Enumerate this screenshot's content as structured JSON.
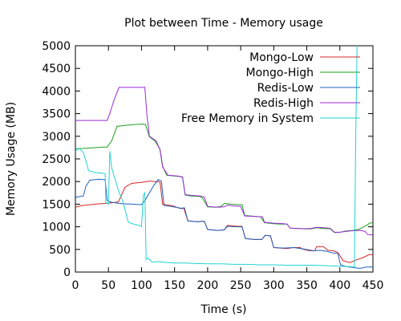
{
  "chart_data": {
    "type": "line",
    "title": "Plot between Time - Memory usage",
    "xlabel": "Time (s)",
    "ylabel": "Memory Usage (MB)",
    "xlim": [
      0,
      450
    ],
    "ylim": [
      0,
      5000
    ],
    "xticks": [
      "0",
      "50",
      "100",
      "150",
      "200",
      "250",
      "300",
      "350",
      "400",
      "450"
    ],
    "yticks": [
      "0",
      "500",
      "1000",
      "1500",
      "2000",
      "2500",
      "3000",
      "3500",
      "4000",
      "4500",
      "5000"
    ],
    "grid": false,
    "legend_position": "top-right",
    "series": [
      {
        "name": "Mongo-Low",
        "color": "#d62728",
        "points": [
          [
            0,
            1430
          ],
          [
            10,
            1470
          ],
          [
            30,
            1500
          ],
          [
            55,
            1530
          ],
          [
            65,
            1550
          ],
          [
            75,
            1870
          ],
          [
            85,
            1960
          ],
          [
            100,
            1980
          ],
          [
            112,
            2010
          ],
          [
            120,
            2000
          ],
          [
            128,
            1990
          ],
          [
            132,
            1500
          ],
          [
            145,
            1470
          ],
          [
            150,
            1450
          ],
          [
            155,
            1420
          ],
          [
            160,
            1400
          ],
          [
            164,
            1410
          ],
          [
            170,
            1130
          ],
          [
            185,
            1110
          ],
          [
            190,
            1120
          ],
          [
            195,
            1120
          ],
          [
            200,
            940
          ],
          [
            215,
            920
          ],
          [
            225,
            930
          ],
          [
            230,
            1030
          ],
          [
            245,
            1010
          ],
          [
            252,
            1010
          ],
          [
            257,
            740
          ],
          [
            270,
            720
          ],
          [
            282,
            720
          ],
          [
            287,
            810
          ],
          [
            295,
            800
          ],
          [
            300,
            540
          ],
          [
            310,
            530
          ],
          [
            320,
            520
          ],
          [
            330,
            540
          ],
          [
            340,
            540
          ],
          [
            345,
            500
          ],
          [
            355,
            470
          ],
          [
            362,
            470
          ],
          [
            365,
            560
          ],
          [
            375,
            560
          ],
          [
            382,
            480
          ],
          [
            390,
            470
          ],
          [
            397,
            430
          ],
          [
            405,
            250
          ],
          [
            415,
            210
          ],
          [
            425,
            270
          ],
          [
            435,
            320
          ],
          [
            445,
            390
          ],
          [
            450,
            380
          ]
        ]
      },
      {
        "name": "Mongo-High",
        "color": "#1aa31a",
        "points": [
          [
            0,
            2720
          ],
          [
            20,
            2740
          ],
          [
            42,
            2760
          ],
          [
            48,
            2760
          ],
          [
            55,
            2900
          ],
          [
            63,
            3220
          ],
          [
            75,
            3240
          ],
          [
            90,
            3260
          ],
          [
            102,
            3270
          ],
          [
            106,
            3260
          ],
          [
            112,
            2990
          ],
          [
            120,
            2900
          ],
          [
            128,
            2720
          ],
          [
            132,
            2340
          ],
          [
            138,
            2140
          ],
          [
            150,
            2120
          ],
          [
            158,
            2110
          ],
          [
            162,
            2090
          ],
          [
            166,
            1700
          ],
          [
            175,
            1680
          ],
          [
            188,
            1670
          ],
          [
            192,
            1640
          ],
          [
            200,
            1440
          ],
          [
            212,
            1430
          ],
          [
            220,
            1450
          ],
          [
            226,
            1520
          ],
          [
            235,
            1500
          ],
          [
            247,
            1490
          ],
          [
            252,
            1490
          ],
          [
            256,
            1250
          ],
          [
            265,
            1240
          ],
          [
            280,
            1220
          ],
          [
            286,
            1090
          ],
          [
            300,
            1070
          ],
          [
            310,
            1060
          ],
          [
            320,
            1060
          ],
          [
            325,
            970
          ],
          [
            340,
            960
          ],
          [
            355,
            950
          ],
          [
            365,
            980
          ],
          [
            375,
            960
          ],
          [
            385,
            960
          ],
          [
            392,
            870
          ],
          [
            400,
            880
          ],
          [
            410,
            910
          ],
          [
            420,
            920
          ],
          [
            430,
            950
          ],
          [
            440,
            1030
          ],
          [
            445,
            1080
          ],
          [
            450,
            1090
          ]
        ]
      },
      {
        "name": "Redis-Low",
        "color": "#1f5fbf",
        "points": [
          [
            0,
            1650
          ],
          [
            8,
            1670
          ],
          [
            12,
            1680
          ],
          [
            16,
            1900
          ],
          [
            22,
            2030
          ],
          [
            35,
            2050
          ],
          [
            45,
            2040
          ],
          [
            48,
            1580
          ],
          [
            55,
            1540
          ],
          [
            70,
            1510
          ],
          [
            85,
            1500
          ],
          [
            100,
            1490
          ],
          [
            106,
            1600
          ],
          [
            118,
            1900
          ],
          [
            125,
            2040
          ],
          [
            130,
            2010
          ],
          [
            134,
            1470
          ],
          [
            145,
            1450
          ],
          [
            160,
            1410
          ],
          [
            165,
            1420
          ],
          [
            170,
            1130
          ],
          [
            185,
            1110
          ],
          [
            195,
            1120
          ],
          [
            200,
            940
          ],
          [
            215,
            920
          ],
          [
            225,
            930
          ],
          [
            230,
            1010
          ],
          [
            245,
            1000
          ],
          [
            252,
            1000
          ],
          [
            257,
            740
          ],
          [
            270,
            720
          ],
          [
            282,
            720
          ],
          [
            287,
            810
          ],
          [
            295,
            800
          ],
          [
            300,
            540
          ],
          [
            315,
            530
          ],
          [
            330,
            540
          ],
          [
            345,
            510
          ],
          [
            360,
            470
          ],
          [
            370,
            480
          ],
          [
            380,
            460
          ],
          [
            390,
            420
          ],
          [
            397,
            410
          ],
          [
            401,
            160
          ],
          [
            410,
            120
          ],
          [
            420,
            100
          ],
          [
            430,
            80
          ],
          [
            440,
            110
          ],
          [
            450,
            110
          ]
        ]
      },
      {
        "name": "Redis-High",
        "color": "#9a2ad6",
        "points": [
          [
            0,
            3350
          ],
          [
            20,
            3350
          ],
          [
            42,
            3350
          ],
          [
            48,
            3350
          ],
          [
            52,
            3500
          ],
          [
            58,
            3780
          ],
          [
            66,
            4080
          ],
          [
            80,
            4080
          ],
          [
            95,
            4080
          ],
          [
            105,
            4080
          ],
          [
            108,
            3510
          ],
          [
            112,
            3000
          ],
          [
            122,
            2900
          ],
          [
            128,
            2700
          ],
          [
            132,
            2320
          ],
          [
            140,
            2140
          ],
          [
            155,
            2120
          ],
          [
            162,
            2100
          ],
          [
            166,
            1710
          ],
          [
            180,
            1690
          ],
          [
            190,
            1680
          ],
          [
            195,
            1650
          ],
          [
            200,
            1450
          ],
          [
            215,
            1430
          ],
          [
            225,
            1440
          ],
          [
            230,
            1480
          ],
          [
            240,
            1460
          ],
          [
            250,
            1450
          ],
          [
            256,
            1240
          ],
          [
            270,
            1230
          ],
          [
            283,
            1220
          ],
          [
            286,
            1100
          ],
          [
            300,
            1080
          ],
          [
            315,
            1070
          ],
          [
            320,
            1060
          ],
          [
            325,
            970
          ],
          [
            340,
            960
          ],
          [
            355,
            960
          ],
          [
            365,
            990
          ],
          [
            375,
            980
          ],
          [
            385,
            970
          ],
          [
            392,
            880
          ],
          [
            400,
            880
          ],
          [
            415,
            910
          ],
          [
            430,
            920
          ],
          [
            438,
            900
          ],
          [
            442,
            830
          ],
          [
            450,
            820
          ]
        ]
      },
      {
        "name": "Free Memory in System",
        "color": "#22d3d3",
        "points": [
          [
            0,
            2660
          ],
          [
            4,
            2740
          ],
          [
            8,
            2700
          ],
          [
            12,
            2640
          ],
          [
            16,
            2450
          ],
          [
            20,
            2240
          ],
          [
            30,
            2200
          ],
          [
            42,
            2180
          ],
          [
            45,
            2170
          ],
          [
            46,
            1540
          ],
          [
            50,
            1500
          ],
          [
            52,
            2670
          ],
          [
            55,
            2300
          ],
          [
            60,
            2050
          ],
          [
            65,
            1800
          ],
          [
            72,
            1550
          ],
          [
            80,
            1100
          ],
          [
            90,
            1050
          ],
          [
            97,
            1030
          ],
          [
            100,
            1000
          ],
          [
            103,
            1700
          ],
          [
            105,
            1760
          ],
          [
            107,
            280
          ],
          [
            110,
            310
          ],
          [
            116,
            220
          ],
          [
            125,
            230
          ],
          [
            140,
            210
          ],
          [
            150,
            200
          ],
          [
            165,
            200
          ],
          [
            180,
            190
          ],
          [
            200,
            180
          ],
          [
            220,
            180
          ],
          [
            240,
            170
          ],
          [
            260,
            170
          ],
          [
            280,
            160
          ],
          [
            300,
            160
          ],
          [
            320,
            150
          ],
          [
            340,
            150
          ],
          [
            360,
            150
          ],
          [
            380,
            140
          ],
          [
            400,
            130
          ],
          [
            415,
            120
          ],
          [
            422,
            110
          ],
          [
            424,
            3000
          ],
          [
            426,
            5000
          ]
        ]
      }
    ]
  }
}
